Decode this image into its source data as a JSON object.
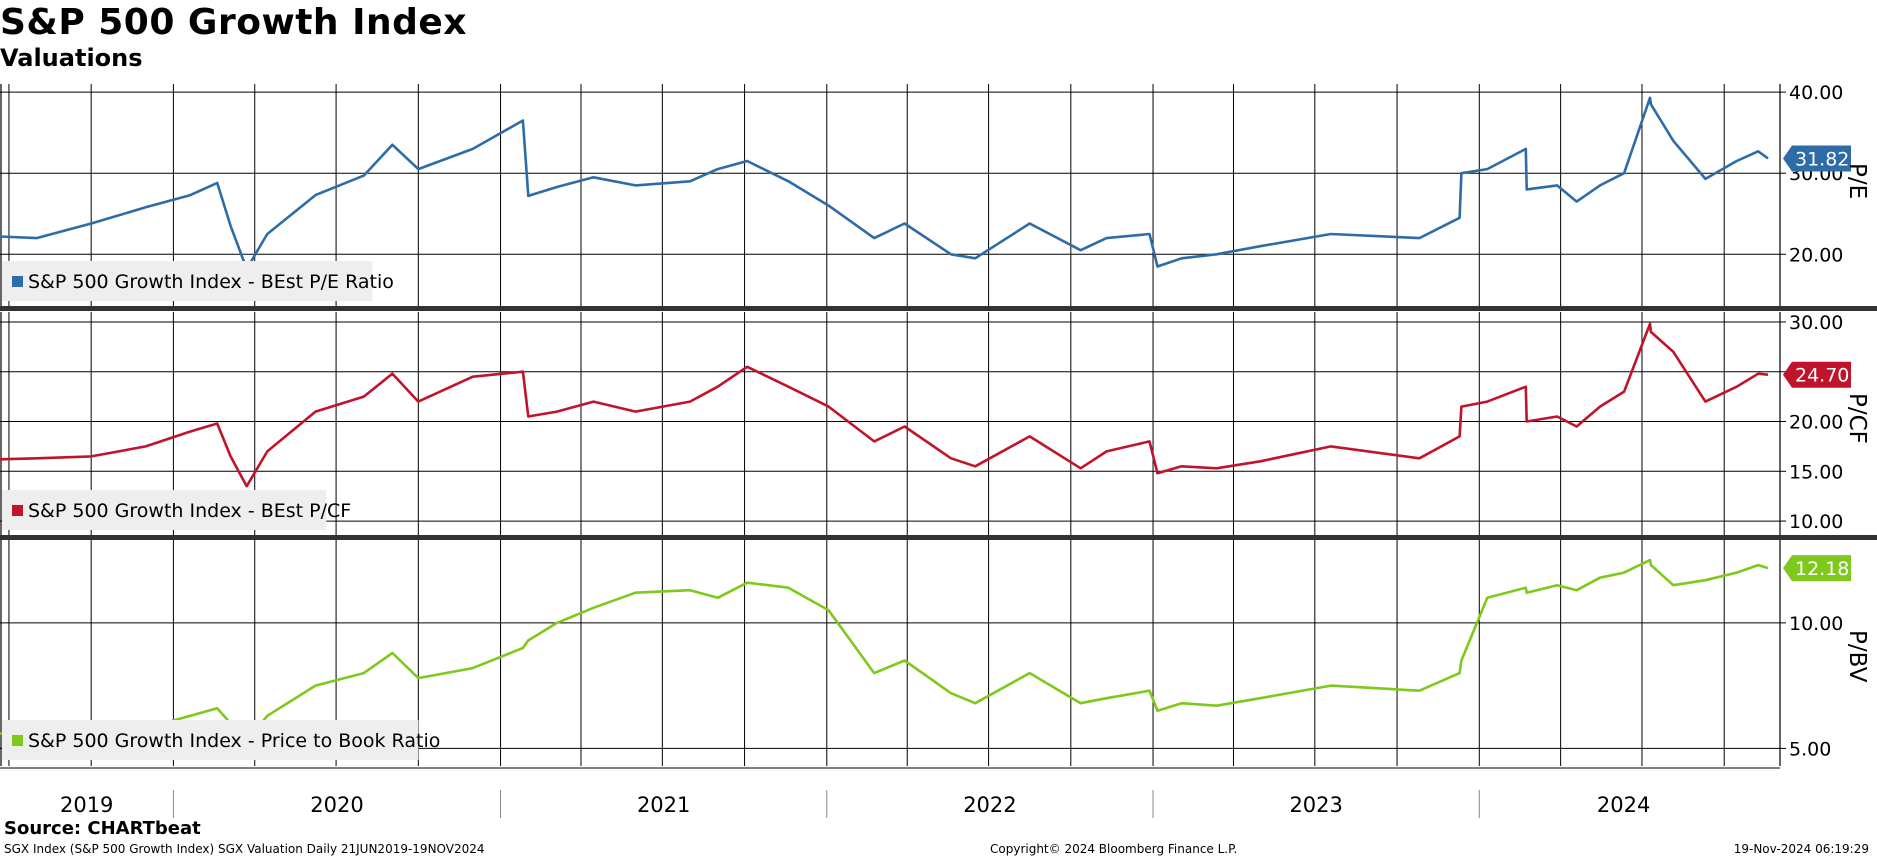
{
  "header": {
    "title": "S&P 500 Growth Index",
    "subtitle": "Valuations"
  },
  "footer": {
    "source": "Source: CHARTbeat",
    "description": "SGX Index (S&P 500 Growth Index) SGX Valuation  Daily 21JUN2019-19NOV2024",
    "copyright": "Copyright© 2024 Bloomberg Finance L.P.",
    "timestamp": "19-Nov-2024 06:19:29"
  },
  "colors": {
    "pe": "#2e6ca8",
    "pcf": "#c0142c",
    "pbv": "#7fc81c",
    "grid": "#000000",
    "legend_bg": "#eeeeee"
  },
  "chart_data": [
    {
      "type": "line",
      "ylabel": "P/E",
      "ylim": [
        13.5,
        41
      ],
      "yticks": [
        20,
        30,
        40
      ],
      "ytick_labels": [
        "20.00",
        "30.00",
        "40.00"
      ],
      "last_value_label": "31.82",
      "legend": "S&P 500 Growth Index - BEst P/E Ratio",
      "x_range": [
        "2019-06-21",
        "2024-11-19"
      ],
      "series": [
        {
          "name": "S&P 500 Growth Index - BEst P/E Ratio",
          "x": [
            "2019-06-21",
            "2019-08-01",
            "2019-10-01",
            "2019-12-01",
            "2020-01-20",
            "2020-02-19",
            "2020-03-05",
            "2020-03-23",
            "2020-04-15",
            "2020-06-08",
            "2020-08-01",
            "2020-09-02",
            "2020-10-01",
            "2020-12-01",
            "2021-01-26",
            "2021-02-01",
            "2021-03-05",
            "2021-04-15",
            "2021-06-01",
            "2021-08-01",
            "2021-09-01",
            "2021-10-04",
            "2021-11-19",
            "2022-01-03",
            "2022-02-23",
            "2022-03-29",
            "2022-05-20",
            "2022-06-16",
            "2022-08-16",
            "2022-10-12",
            "2022-11-10",
            "2022-12-28",
            "2023-01-06",
            "2023-02-02",
            "2023-03-13",
            "2023-05-01",
            "2023-07-19",
            "2023-10-26",
            "2023-12-10",
            "2023-12-12",
            "2024-01-10",
            "2024-02-22",
            "2024-02-23",
            "2024-03-28",
            "2024-04-19",
            "2024-05-15",
            "2024-06-11",
            "2024-07-10",
            "2024-07-11",
            "2024-08-05",
            "2024-09-10",
            "2024-10-15",
            "2024-11-08",
            "2024-11-19"
          ],
          "y": [
            22.2,
            22.0,
            23.8,
            25.8,
            27.3,
            28.8,
            23.5,
            18.2,
            22.5,
            27.3,
            29.7,
            33.5,
            30.5,
            33.0,
            36.5,
            27.2,
            28.3,
            29.5,
            28.5,
            29.0,
            30.5,
            31.5,
            29.0,
            26.0,
            22.0,
            23.8,
            20.0,
            19.5,
            23.8,
            20.5,
            22.0,
            22.5,
            18.5,
            19.5,
            20.0,
            21.0,
            22.5,
            22.0,
            24.5,
            30.0,
            30.5,
            33.0,
            28.0,
            28.5,
            26.5,
            28.5,
            30.0,
            39.3,
            38.5,
            34.0,
            29.3,
            31.5,
            32.7,
            31.82
          ]
        }
      ]
    },
    {
      "type": "line",
      "ylabel": "P/CF",
      "ylim": [
        8.5,
        31
      ],
      "yticks": [
        10,
        15,
        20,
        25,
        30
      ],
      "ytick_labels": [
        "10.00",
        "15.00",
        "20.00",
        "",
        "30.00"
      ],
      "last_value_label": "24.70",
      "legend": "S&P 500 Growth Index - BEst P/CF",
      "x_range": [
        "2019-06-21",
        "2024-11-19"
      ],
      "series": [
        {
          "name": "S&P 500 Growth Index - BEst P/CF",
          "x": [
            "2019-06-21",
            "2019-08-01",
            "2019-10-01",
            "2019-12-01",
            "2020-01-20",
            "2020-02-19",
            "2020-03-05",
            "2020-03-23",
            "2020-04-15",
            "2020-06-08",
            "2020-08-01",
            "2020-09-02",
            "2020-10-01",
            "2020-12-01",
            "2021-01-26",
            "2021-02-01",
            "2021-03-05",
            "2021-04-15",
            "2021-06-01",
            "2021-08-01",
            "2021-09-01",
            "2021-10-04",
            "2021-11-19",
            "2022-01-03",
            "2022-02-23",
            "2022-03-29",
            "2022-05-20",
            "2022-06-16",
            "2022-08-16",
            "2022-10-12",
            "2022-11-10",
            "2022-12-28",
            "2023-01-06",
            "2023-02-02",
            "2023-03-13",
            "2023-05-01",
            "2023-07-19",
            "2023-10-26",
            "2023-12-10",
            "2023-12-12",
            "2024-01-10",
            "2024-02-22",
            "2024-02-23",
            "2024-03-28",
            "2024-04-19",
            "2024-05-15",
            "2024-06-11",
            "2024-07-10",
            "2024-07-11",
            "2024-08-05",
            "2024-09-10",
            "2024-10-15",
            "2024-11-08",
            "2024-11-19"
          ],
          "y": [
            16.2,
            16.3,
            16.5,
            17.5,
            19.0,
            19.8,
            16.5,
            13.5,
            17.0,
            21.0,
            22.5,
            24.8,
            22.0,
            24.5,
            25.0,
            20.5,
            21.0,
            22.0,
            21.0,
            22.0,
            23.5,
            25.5,
            23.5,
            21.5,
            18.0,
            19.5,
            16.3,
            15.5,
            18.5,
            15.3,
            17.0,
            18.0,
            14.8,
            15.5,
            15.3,
            16.0,
            17.5,
            16.3,
            18.5,
            21.5,
            22.0,
            23.5,
            20.0,
            20.5,
            19.5,
            21.5,
            23.0,
            29.8,
            29.0,
            27.0,
            22.0,
            23.5,
            24.8,
            24.7
          ]
        }
      ]
    },
    {
      "type": "line",
      "ylabel": "P/BV",
      "ylim": [
        4.3,
        13.3
      ],
      "yticks": [
        5,
        10
      ],
      "ytick_labels": [
        "5.00",
        "10.00"
      ],
      "last_value_label": "12.18",
      "legend": "S&P 500 Growth Index - Price to Book Ratio",
      "x_range": [
        "2019-06-21",
        "2024-11-19"
      ],
      "series": [
        {
          "name": "S&P 500 Growth Index - Price to Book Ratio",
          "x": [
            "2019-06-21",
            "2019-08-01",
            "2019-10-01",
            "2019-12-01",
            "2020-01-20",
            "2020-02-19",
            "2020-03-05",
            "2020-03-23",
            "2020-04-15",
            "2020-06-08",
            "2020-08-01",
            "2020-09-02",
            "2020-10-01",
            "2020-12-01",
            "2021-01-26",
            "2021-02-01",
            "2021-03-05",
            "2021-04-15",
            "2021-06-01",
            "2021-08-01",
            "2021-09-01",
            "2021-10-04",
            "2021-11-19",
            "2022-01-03",
            "2022-02-23",
            "2022-03-29",
            "2022-05-20",
            "2022-06-16",
            "2022-08-16",
            "2022-10-12",
            "2022-11-10",
            "2022-12-28",
            "2023-01-06",
            "2023-02-02",
            "2023-03-13",
            "2023-05-01",
            "2023-07-19",
            "2023-10-26",
            "2023-12-10",
            "2023-12-12",
            "2024-01-10",
            "2024-02-22",
            "2024-02-23",
            "2024-03-28",
            "2024-04-19",
            "2024-05-15",
            "2024-06-11",
            "2024-07-10",
            "2024-07-11",
            "2024-08-05",
            "2024-09-10",
            "2024-10-15",
            "2024-11-08",
            "2024-11-19"
          ],
          "y": [
            5.6,
            5.5,
            5.7,
            5.8,
            6.3,
            6.6,
            6.0,
            5.3,
            6.3,
            7.5,
            8.0,
            8.8,
            7.8,
            8.2,
            9.0,
            9.3,
            10.0,
            10.6,
            11.2,
            11.3,
            11.0,
            11.6,
            11.4,
            10.5,
            8.0,
            8.5,
            7.2,
            6.8,
            8.0,
            6.8,
            7.0,
            7.3,
            6.5,
            6.8,
            6.7,
            7.0,
            7.5,
            7.3,
            8.0,
            8.5,
            11.0,
            11.4,
            11.2,
            11.5,
            11.3,
            11.8,
            12.0,
            12.5,
            12.3,
            11.5,
            11.7,
            12.0,
            12.3,
            12.18
          ]
        }
      ]
    }
  ],
  "x_axis": {
    "year_labels": [
      "2019",
      "2020",
      "2021",
      "2022",
      "2023",
      "2024"
    ]
  }
}
